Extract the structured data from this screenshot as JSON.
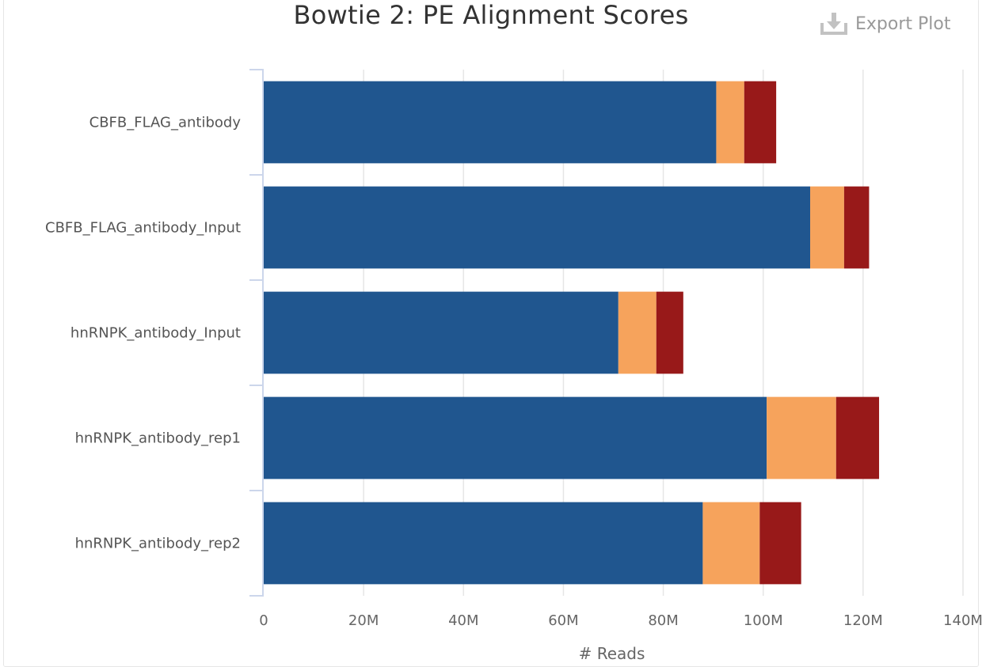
{
  "header": {
    "title": "Bowtie 2: PE Alignment Scores",
    "export_label": "Export Plot"
  },
  "chart_data": {
    "type": "bar",
    "orientation": "horizontal",
    "stacked": true,
    "title": "Bowtie 2: PE Alignment Scores",
    "xlabel": "# Reads",
    "ylabel": "",
    "xlim": [
      0,
      140000000
    ],
    "x_ticks": [
      0,
      20000000,
      40000000,
      60000000,
      80000000,
      100000000,
      120000000,
      140000000
    ],
    "x_tick_labels": [
      "0",
      "20M",
      "40M",
      "60M",
      "80M",
      "100M",
      "120M",
      "140M"
    ],
    "grid": true,
    "legend": "none",
    "categories": [
      "CBFB_FLAG_antibody",
      "CBFB_FLAG_antibody_Input",
      "hnRNPK_antibody_Input",
      "hnRNPK_antibody_rep1",
      "hnRNPK_antibody_rep2"
    ],
    "series": [
      {
        "color": "#20568f",
        "values": [
          90600000,
          109400000,
          71000000,
          100700000,
          87900000
        ]
      },
      {
        "color": "#f6a35c",
        "values": [
          5600000,
          6800000,
          7600000,
          13900000,
          11400000
        ]
      },
      {
        "color": "#981919",
        "values": [
          6400000,
          5000000,
          5400000,
          8600000,
          8300000
        ]
      }
    ]
  }
}
